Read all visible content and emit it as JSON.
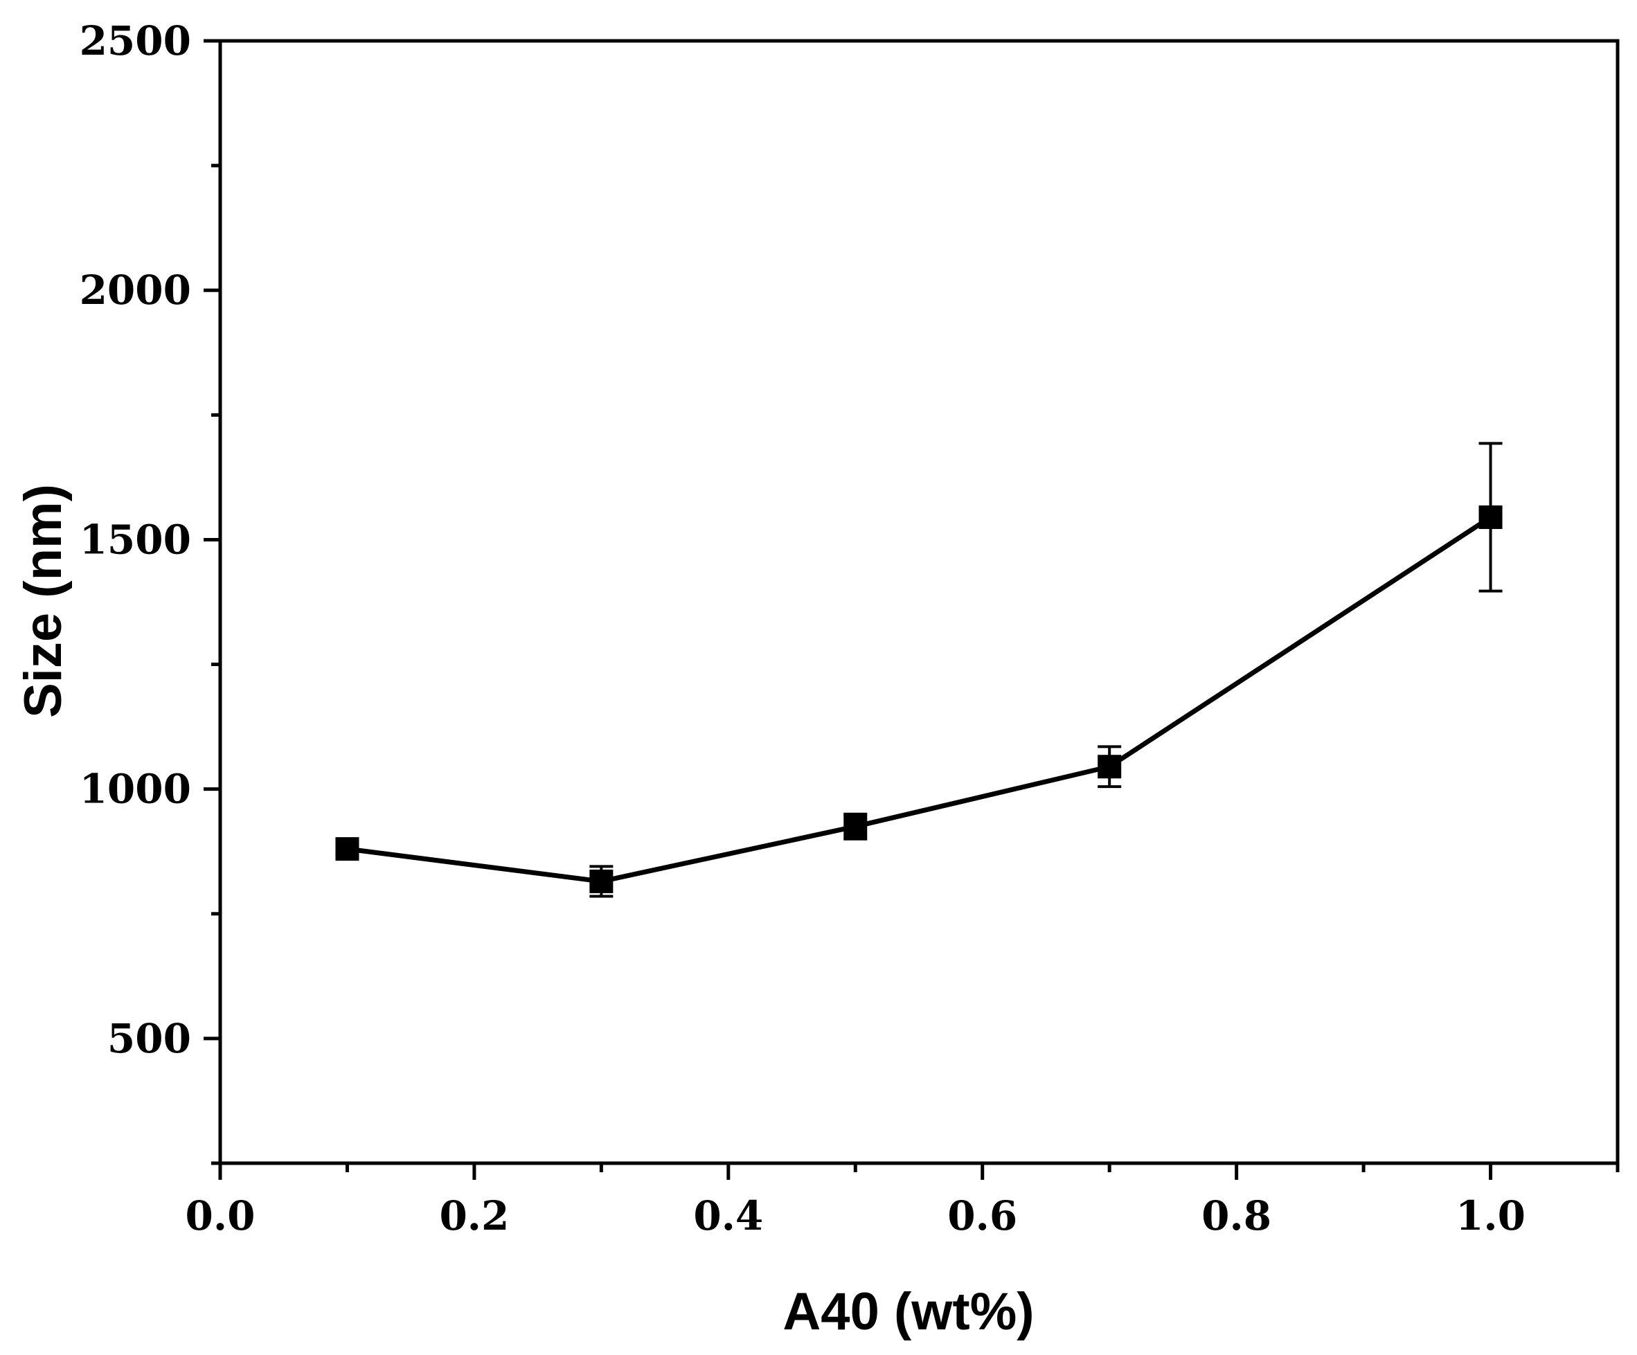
{
  "chart_data": {
    "type": "line",
    "title": "",
    "xlabel": "A40 (wt%)",
    "ylabel": "Size (nm)",
    "xlim": [
      0.0,
      1.1
    ],
    "ylim": [
      250,
      2500
    ],
    "xticks": [
      0.0,
      0.2,
      0.4,
      0.6,
      0.8,
      1.0
    ],
    "xtick_labels": [
      "0.0",
      "0.2",
      "0.4",
      "0.6",
      "0.8",
      "1.0"
    ],
    "xminor": [
      0.1,
      0.3,
      0.5,
      0.7,
      0.9,
      1.1
    ],
    "yticks": [
      500,
      1000,
      1500,
      2000,
      2500
    ],
    "ytick_labels": [
      "500",
      "1000",
      "1500",
      "2000",
      "2500"
    ],
    "yminor": [
      250,
      750,
      1250,
      1750,
      2250
    ],
    "grid": false,
    "series": [
      {
        "name": "Size",
        "marker": "square",
        "color": "#000000",
        "x": [
          0.1,
          0.3,
          0.5,
          0.7,
          1.0
        ],
        "y": [
          880,
          815,
          925,
          1045,
          1545
        ],
        "yerr": [
          10,
          30,
          25,
          40,
          148
        ]
      }
    ]
  }
}
